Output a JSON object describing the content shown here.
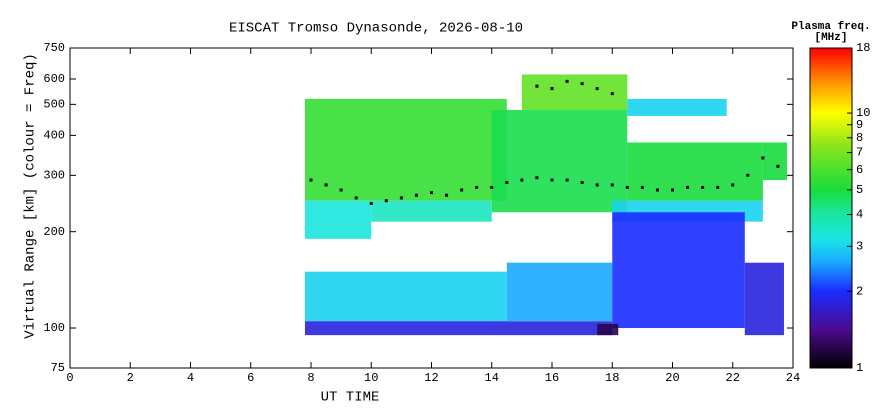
{
  "chart_data": {
    "type": "scatter",
    "title": "EISCAT Tromso Dynasonde, 2026-08-10",
    "x_label": "UT TIME",
    "y_label": "Virtual Range [km] (colour = Freq)",
    "xlim": [
      0,
      24
    ],
    "xticks": [
      0,
      2,
      4,
      6,
      8,
      10,
      12,
      14,
      16,
      18,
      20,
      22,
      24
    ],
    "ylim": [
      75,
      750
    ],
    "yticks": [
      75,
      100,
      200,
      300,
      400,
      500,
      600,
      750
    ],
    "y_log": true,
    "point_color": "#000000",
    "x": [
      8,
      8.5,
      9,
      9.5,
      10,
      10.5,
      11,
      11.5,
      12,
      12.5,
      13,
      13.5,
      14,
      14.5,
      15,
      15.5,
      16,
      16.5,
      17,
      17.5,
      18,
      18.5,
      19,
      19.5,
      20,
      20.5,
      21,
      21.5,
      22,
      22.5,
      23,
      23.5,
      15.5,
      16,
      16.5,
      17,
      17.5,
      18
    ],
    "y": [
      290,
      280,
      270,
      255,
      245,
      250,
      255,
      260,
      265,
      260,
      270,
      275,
      275,
      285,
      290,
      295,
      290,
      290,
      285,
      280,
      280,
      275,
      275,
      270,
      270,
      275,
      275,
      275,
      280,
      300,
      340,
      320,
      570,
      560,
      590,
      580,
      560,
      540
    ],
    "echo_regions": [
      {
        "x": [
          7.8,
          14.5
        ],
        "y": [
          250,
          520
        ],
        "freq": 5.5
      },
      {
        "x": [
          7.8,
          10
        ],
        "y": [
          190,
          250
        ],
        "freq": 3.3
      },
      {
        "x": [
          10,
          14
        ],
        "y": [
          215,
          250
        ],
        "freq": 3.6
      },
      {
        "x": [
          14,
          18.5
        ],
        "y": [
          230,
          480
        ],
        "freq": 4.8
      },
      {
        "x": [
          15,
          18.5
        ],
        "y": [
          480,
          620
        ],
        "freq": 6.5
      },
      {
        "x": [
          18.5,
          21.8
        ],
        "y": [
          460,
          520
        ],
        "freq": 3
      },
      {
        "x": [
          18.5,
          23
        ],
        "y": [
          250,
          380
        ],
        "freq": 5
      },
      {
        "x": [
          18,
          23
        ],
        "y": [
          215,
          250
        ],
        "freq": 3
      },
      {
        "x": [
          23,
          23.8
        ],
        "y": [
          290,
          380
        ],
        "freq": 5
      },
      {
        "x": [
          7.8,
          14.5
        ],
        "y": [
          105,
          150
        ],
        "freq": 3
      },
      {
        "x": [
          7.8,
          18
        ],
        "y": [
          95,
          105
        ],
        "freq": 1.8
      },
      {
        "x": [
          14.5,
          18
        ],
        "y": [
          105,
          160
        ],
        "freq": 2.6
      },
      {
        "x": [
          18,
          22.4
        ],
        "y": [
          100,
          230
        ],
        "freq": 2
      },
      {
        "x": [
          22.4,
          23.7
        ],
        "y": [
          95,
          160
        ],
        "freq": 1.8
      },
      {
        "x": [
          17.5,
          18.2
        ],
        "y": [
          95,
          103
        ],
        "freq": 1.2
      }
    ],
    "colorbar_title": "Plasma freq.",
    "colorbar_unit": "[MHz]",
    "colorbar_lim": [
      1,
      18
    ],
    "colorbar_ticks": [
      1,
      2,
      3,
      4,
      5,
      6,
      7,
      8,
      9,
      10,
      18
    ],
    "colormap": [
      {
        "value": 1,
        "color": "#000000"
      },
      {
        "value": 1.4,
        "color": "#4b0a8c"
      },
      {
        "value": 2,
        "color": "#1a2cff"
      },
      {
        "value": 2.6,
        "color": "#1aa8ff"
      },
      {
        "value": 3.2,
        "color": "#19e6e6"
      },
      {
        "value": 4,
        "color": "#19e6a0"
      },
      {
        "value": 5,
        "color": "#19dc3c"
      },
      {
        "value": 7.5,
        "color": "#8ce619"
      },
      {
        "value": 10,
        "color": "#ffff00"
      },
      {
        "value": 13,
        "color": "#ff9900"
      },
      {
        "value": 18,
        "color": "#ff0000"
      }
    ]
  }
}
